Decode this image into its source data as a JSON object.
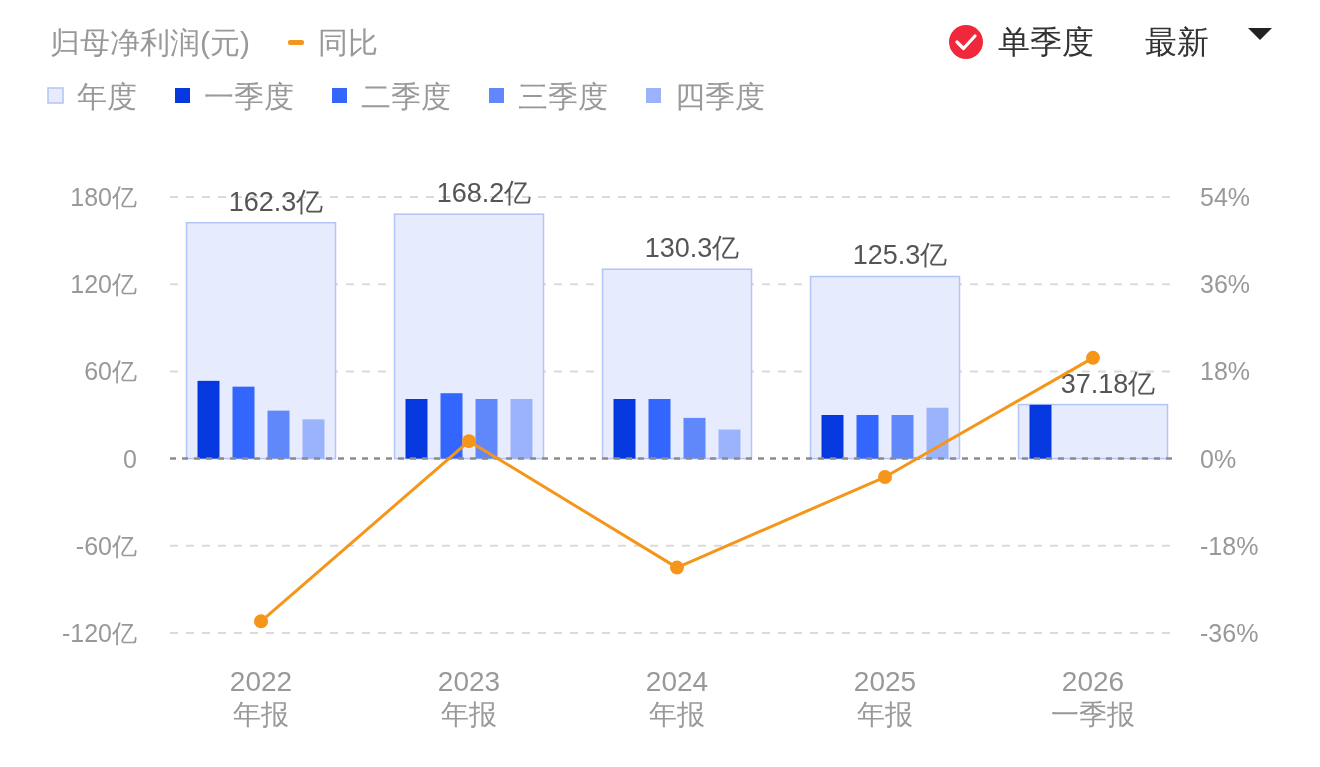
{
  "chart_data": {
    "type": "bar",
    "title": "归母净利润(元)",
    "categories": [
      "2022\n年报",
      "2023\n年报",
      "2024\n年报",
      "2025\n年报",
      "2026\n一季报"
    ],
    "series": [
      {
        "name": "年度",
        "color": "#e6ecfd",
        "values": [
          162.3,
          168.2,
          130.3,
          125.3,
          37.18
        ],
        "value_labels": [
          "162.3亿",
          "168.2亿",
          "130.3亿",
          "125.3亿",
          "37.18亿"
        ]
      },
      {
        "name": "一季度",
        "color": "#0538de",
        "values": [
          53.5,
          41,
          41,
          30,
          37
        ]
      },
      {
        "name": "二季度",
        "color": "#3366ff",
        "values": [
          49.5,
          45,
          41,
          30,
          null
        ]
      },
      {
        "name": "三季度",
        "color": "#6088fb",
        "values": [
          33,
          41,
          28,
          30,
          null
        ]
      },
      {
        "name": "四季度",
        "color": "#9bb3fb",
        "values": [
          27,
          41,
          20,
          35,
          null
        ]
      },
      {
        "name": "同比",
        "type": "line",
        "axis": "y2",
        "color": "#f5961b",
        "marker": "circle",
        "values": [
          -33.6,
          3.6,
          -22.5,
          -3.8,
          20.8
        ]
      }
    ],
    "ylim": [
      -120,
      180
    ],
    "yticks": [
      {
        "value": -120,
        "label": "-120亿"
      },
      {
        "value": -60,
        "label": "-60亿"
      },
      0,
      {
        "value": 60,
        "label": "60亿"
      },
      {
        "value": 120,
        "label": "120亿"
      },
      {
        "value": 180,
        "label": "180亿"
      }
    ],
    "y2lim": [
      -36,
      54
    ],
    "y2ticks": [
      {
        "value": -36,
        "label": "-36%"
      },
      {
        "value": -18,
        "label": "-18%"
      },
      {
        "value": 0,
        "label": "0%"
      },
      {
        "value": 18,
        "label": "18%"
      },
      {
        "value": 36,
        "label": "36%"
      },
      {
        "value": 54,
        "label": "54%"
      }
    ],
    "ref_lines": [
      {
        "axis": "y",
        "value": 0,
        "color": "#8c8c8c",
        "line_style": "dotted"
      }
    ],
    "grid": "y",
    "legend": "top left",
    "line_style": "solid",
    "annotations": [
      "单季度",
      "最新"
    ]
  }
}
